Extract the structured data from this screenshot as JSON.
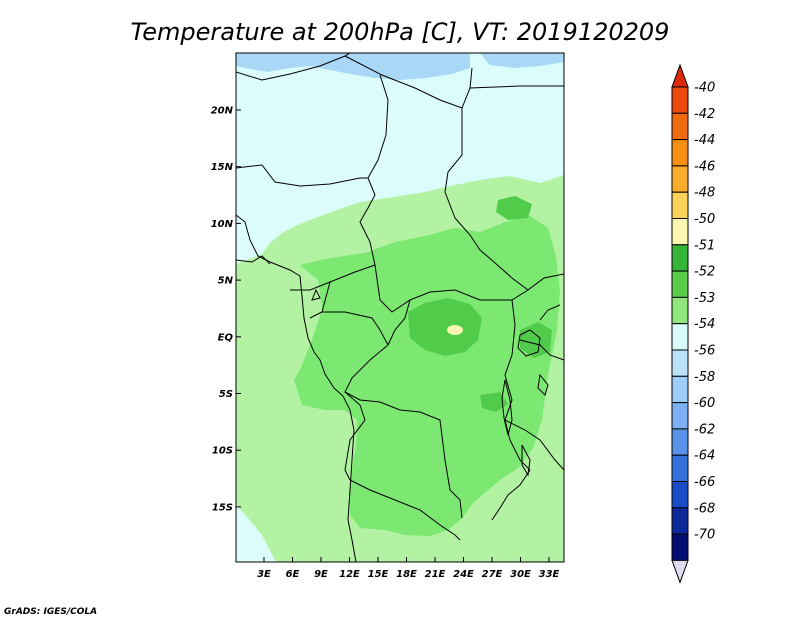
{
  "title": "Temperature at 200hPa [C], VT: 2019120209",
  "credit": "GrADS: IGES/COLA",
  "lat_labels": [
    "20N",
    "15N",
    "10N",
    "5N",
    "EQ",
    "5S",
    "10S",
    "15S"
  ],
  "lon_labels": [
    "3E",
    "6E",
    "9E",
    "12E",
    "15E",
    "18E",
    "21E",
    "24E",
    "27E",
    "30E",
    "33E"
  ],
  "colorbar": {
    "labels": [
      "-40",
      "-42",
      "-44",
      "-46",
      "-48",
      "-50",
      "-51",
      "-52",
      "-53",
      "-54",
      "-56",
      "-58",
      "-60",
      "-62",
      "-64",
      "-66",
      "-68",
      "-70"
    ],
    "colors": [
      "#dd2a0c",
      "#ea4a0c",
      "#f26a10",
      "#f88e14",
      "#fbac2c",
      "#fad25a",
      "#fdf6b0",
      "#36b436",
      "#5acc4a",
      "#8ee67c",
      "#d8fcfa",
      "#bce2fa",
      "#9ccdf8",
      "#7cb0f2",
      "#5893e8",
      "#3672dc",
      "#1a4ec8",
      "#0e2a9a",
      "#050f72",
      "#dcdcf4"
    ]
  },
  "map": {
    "region": "Central Africa",
    "lon_range": [
      "0E",
      "34E"
    ],
    "lat_range": [
      "19S",
      "25N"
    ],
    "fill_levels": [
      "-51",
      "-52",
      "-53",
      "-54",
      "-56"
    ]
  }
}
